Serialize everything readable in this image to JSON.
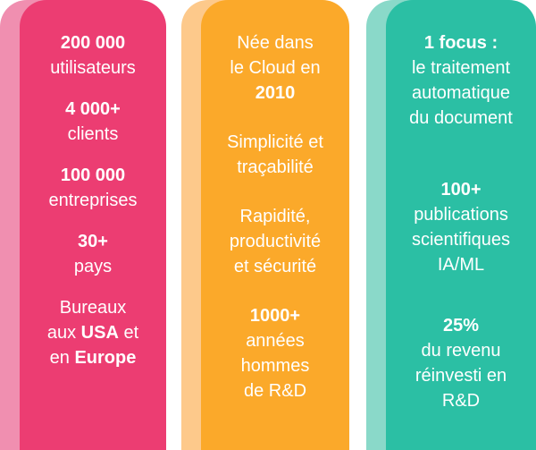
{
  "colors": {
    "pink": "#ec3d72",
    "orange": "#fba92a",
    "teal": "#2bbfa4"
  },
  "col1": {
    "b1_bold": "200 000",
    "b1_text": "utilisateurs",
    "b2_bold": "4 000+",
    "b2_text": "clients",
    "b3_bold": "100 000",
    "b3_text": "entreprises",
    "b4_bold": "30+",
    "b4_text": "pays",
    "b5_line1": "Bureaux",
    "b5_pre": "aux ",
    "b5_usa": "USA",
    "b5_mid": " et",
    "b5_pre2": "en ",
    "b5_europe": "Europe"
  },
  "col2": {
    "b1_line1": "Née dans",
    "b1_line2": "le Cloud en",
    "b1_bold": "2010",
    "b2_line1": "Simplicité et",
    "b2_line2": "traçabilité",
    "b3_line1": "Rapidité,",
    "b3_line2": "productivité",
    "b3_line3": "et sécurité",
    "b4_bold": "1000+",
    "b4_line1": "années",
    "b4_line2": "hommes",
    "b4_line3": "de R&D"
  },
  "col3": {
    "b1_bold": "1 focus :",
    "b1_line1": "le traitement",
    "b1_line2": "automatique",
    "b1_line3": "du document",
    "b2_bold": "100+",
    "b2_line1": "publications",
    "b2_line2": "scientifiques",
    "b2_line3": "IA/ML",
    "b3_bold": "25%",
    "b3_line1": "du revenu",
    "b3_line2": "réinvesti en",
    "b3_line3": "R&D"
  }
}
